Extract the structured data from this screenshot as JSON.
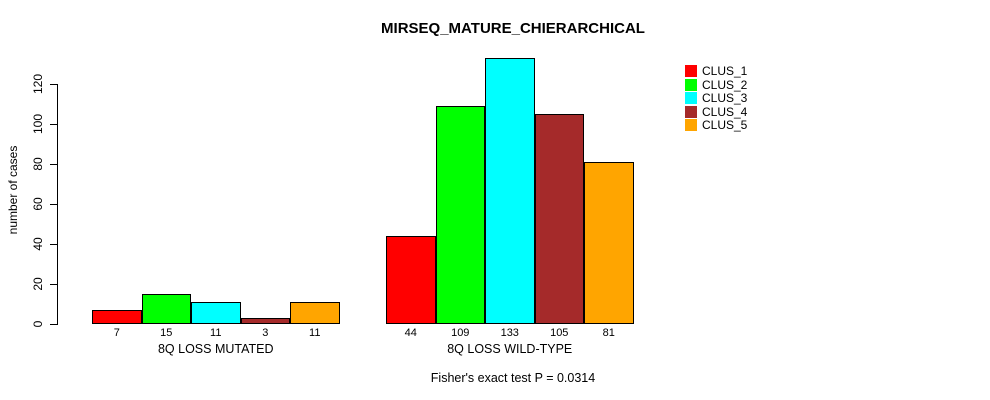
{
  "title": "MIRSEQ_MATURE_CHIERARCHICAL",
  "caption": "Fisher's exact test P = 0.0314",
  "background_color": "#FFFFFF",
  "chart_data": {
    "type": "bar",
    "title": "MIRSEQ_MATURE_CHIERARCHICAL",
    "ylabel": "number of cases",
    "xlabel": "",
    "yticks": [
      0,
      20,
      40,
      60,
      80,
      100,
      120
    ],
    "ylim": [
      0,
      120
    ],
    "grid": false,
    "legend_position": "right",
    "categories": [
      "8Q LOSS MUTATED",
      "8Q LOSS WILD-TYPE"
    ],
    "series": [
      {
        "name": "CLUS_1",
        "color": "#FF0000",
        "values": [
          7,
          44
        ]
      },
      {
        "name": "CLUS_2",
        "color": "#00FF00",
        "values": [
          15,
          109
        ]
      },
      {
        "name": "CLUS_3",
        "color": "#00FFFF",
        "values": [
          11,
          133
        ]
      },
      {
        "name": "CLUS_4",
        "color": "#A52A2A",
        "values": [
          3,
          105
        ]
      },
      {
        "name": "CLUS_5",
        "color": "#FFA500",
        "values": [
          11,
          81
        ]
      }
    ],
    "annotation": "Fisher's exact test P = 0.0314"
  }
}
